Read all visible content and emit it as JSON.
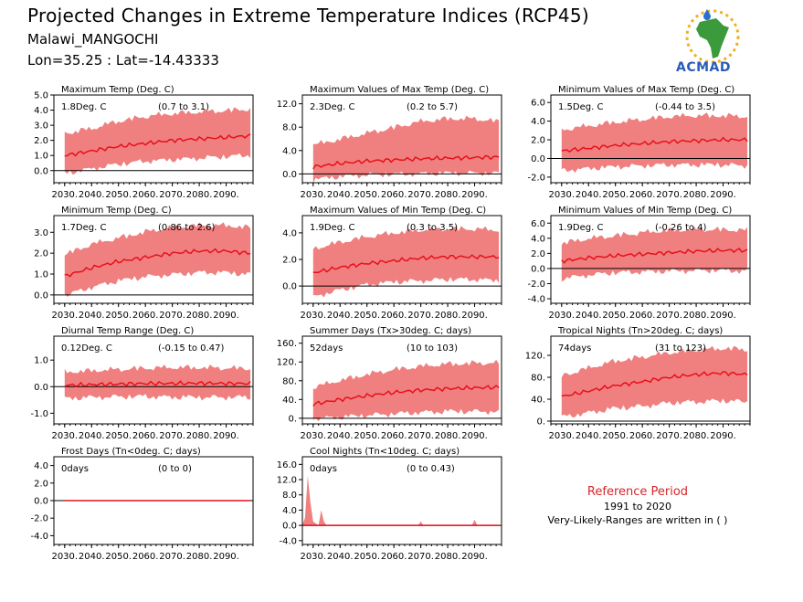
{
  "header": {
    "title": "Projected Changes in Extreme Temperature Indices (RCP45)",
    "location": "Malawi_MANGOCHI",
    "coordinates": "Lon=35.25 : Lat=-14.43333"
  },
  "logo": {
    "text": "ACMAD"
  },
  "reference": {
    "title": "Reference Period",
    "years": "1991 to 2020",
    "note": "Very-Likely-Ranges are written in ( )"
  },
  "colors": {
    "band": "#f08080",
    "line": "#e8101a",
    "zero": "#000000",
    "ref_title": "#d4262a"
  },
  "chart_data": [
    {
      "type": "area",
      "title": "Maximum Temp (Deg. C)",
      "change": "1.8Deg. C",
      "range": "(0.7 to 3.1)",
      "ylim": [
        -0.8,
        5.0
      ],
      "yticks": [
        "5.0",
        "4.0",
        "3.0",
        "2.0",
        "1.0",
        "0.0"
      ],
      "ytick_values": [
        5,
        4,
        3,
        2,
        1,
        0
      ],
      "xticks": [
        "2030.",
        "2040.",
        "2050.",
        "2060.",
        "2070.",
        "2080.",
        "2090."
      ],
      "xlim": [
        2026,
        2100
      ],
      "series": [
        {
          "x": [
            2030,
            2040,
            2050,
            2060,
            2070,
            2080,
            2090,
            2099
          ],
          "median": [
            1.0,
            1.3,
            1.6,
            1.8,
            2.0,
            2.1,
            2.2,
            2.3
          ],
          "low": [
            0.0,
            0.3,
            0.6,
            0.8,
            0.9,
            1.0,
            1.1,
            1.2
          ],
          "high": [
            2.3,
            2.6,
            3.1,
            3.4,
            3.6,
            3.7,
            3.8,
            3.9
          ]
        }
      ]
    },
    {
      "type": "area",
      "title": "Maximum Values of Max Temp (Deg. C)",
      "change": "2.3Deg. C",
      "range": "(0.2 to 5.7)",
      "ylim": [
        -1.5,
        13.5
      ],
      "yticks": [
        "12.0",
        "8.0",
        "4.0",
        "0.0"
      ],
      "ytick_values": [
        12,
        8,
        4,
        0
      ],
      "xticks": [
        "2030.",
        "2040.",
        "2050.",
        "2060.",
        "2070.",
        "2080.",
        "2090."
      ],
      "xlim": [
        2026,
        2100
      ],
      "series": [
        {
          "x": [
            2030,
            2040,
            2050,
            2060,
            2070,
            2080,
            2090,
            2099
          ],
          "median": [
            1.2,
            1.8,
            2.2,
            2.4,
            2.6,
            2.7,
            2.8,
            2.9
          ],
          "low": [
            -0.5,
            0.0,
            0.3,
            0.4,
            0.5,
            0.6,
            0.6,
            0.6
          ],
          "high": [
            4.5,
            5.5,
            6.5,
            7.5,
            8.5,
            9.0,
            9.0,
            8.5
          ]
        }
      ]
    },
    {
      "type": "area",
      "title": "Minimum Values of Max Temp (Deg. C)",
      "change": "1.5Deg. C",
      "range": "(-0.44 to 3.5)",
      "ylim": [
        -2.6,
        6.8
      ],
      "yticks": [
        "6.0",
        "4.0",
        "2.0",
        "0.0",
        "-2.0"
      ],
      "ytick_values": [
        6,
        4,
        2,
        0,
        -2
      ],
      "xticks": [
        "2030.",
        "2040.",
        "2050.",
        "2060.",
        "2070.",
        "2080.",
        "2090."
      ],
      "xlim": [
        2026,
        2100
      ],
      "series": [
        {
          "x": [
            2030,
            2040,
            2050,
            2060,
            2070,
            2080,
            2090,
            2099
          ],
          "median": [
            0.8,
            1.1,
            1.4,
            1.6,
            1.8,
            1.9,
            2.0,
            2.0
          ],
          "low": [
            -1.0,
            -0.8,
            -0.6,
            -0.5,
            -0.4,
            -0.4,
            -0.4,
            -0.5
          ],
          "high": [
            2.8,
            3.2,
            3.6,
            3.9,
            4.2,
            4.3,
            4.3,
            4.2
          ]
        }
      ]
    },
    {
      "type": "area",
      "title": "Minimum Temp (Deg. C)",
      "change": "1.7Deg. C",
      "range": "(0.86 to 2.6)",
      "ylim": [
        -0.4,
        3.8
      ],
      "yticks": [
        "3.0",
        "2.0",
        "1.0",
        "0.0"
      ],
      "ytick_values": [
        3,
        2,
        1,
        0
      ],
      "xticks": [
        "2030.",
        "2040.",
        "2050.",
        "2060.",
        "2070.",
        "2080.",
        "2090."
      ],
      "xlim": [
        2026,
        2100
      ],
      "series": [
        {
          "x": [
            2030,
            2040,
            2050,
            2060,
            2070,
            2080,
            2090,
            2099
          ],
          "median": [
            0.9,
            1.3,
            1.6,
            1.8,
            2.0,
            2.1,
            2.1,
            2.0
          ],
          "low": [
            0.1,
            0.5,
            0.8,
            1.0,
            1.1,
            1.2,
            1.2,
            1.1
          ],
          "high": [
            1.8,
            2.3,
            2.6,
            2.9,
            3.1,
            3.2,
            3.2,
            3.1
          ]
        }
      ]
    },
    {
      "type": "area",
      "title": "Maximum Values of Min Temp (Deg. C)",
      "change": "1.9Deg. C",
      "range": "(0.3 to 3.5)",
      "ylim": [
        -1.3,
        5.3
      ],
      "yticks": [
        "4.0",
        "2.0",
        "0.0"
      ],
      "ytick_values": [
        4,
        2,
        0
      ],
      "xticks": [
        "2030.",
        "2040.",
        "2050.",
        "2060.",
        "2070.",
        "2080.",
        "2090."
      ],
      "xlim": [
        2026,
        2100
      ],
      "series": [
        {
          "x": [
            2030,
            2040,
            2050,
            2060,
            2070,
            2080,
            2090,
            2099
          ],
          "median": [
            1.0,
            1.4,
            1.7,
            1.9,
            2.1,
            2.2,
            2.2,
            2.2
          ],
          "low": [
            -0.6,
            -0.1,
            0.3,
            0.5,
            0.6,
            0.7,
            0.7,
            0.6
          ],
          "high": [
            2.6,
            3.1,
            3.5,
            3.8,
            4.0,
            4.1,
            4.1,
            4.0
          ]
        }
      ]
    },
    {
      "type": "area",
      "title": "Minimum Values of Min Temp (Deg. C)",
      "change": "1.9Deg. C",
      "range": "(-0.26 to 4)",
      "ylim": [
        -4.6,
        7.0
      ],
      "yticks": [
        "6.0",
        "4.0",
        "2.0",
        "0.0",
        "-2.0",
        "-4.0"
      ],
      "ytick_values": [
        6,
        4,
        2,
        0,
        -2,
        -4
      ],
      "xticks": [
        "2030.",
        "2040.",
        "2050.",
        "2060.",
        "2070.",
        "2080.",
        "2090."
      ],
      "xlim": [
        2026,
        2100
      ],
      "series": [
        {
          "x": [
            2030,
            2040,
            2050,
            2060,
            2070,
            2080,
            2090,
            2099
          ],
          "median": [
            1.0,
            1.4,
            1.7,
            1.9,
            2.1,
            2.3,
            2.4,
            2.4
          ],
          "low": [
            -1.0,
            -0.5,
            -0.2,
            -0.1,
            0.0,
            0.1,
            0.1,
            0.0
          ],
          "high": [
            3.0,
            3.6,
            4.0,
            4.4,
            4.7,
            4.8,
            4.8,
            4.7
          ]
        }
      ]
    },
    {
      "type": "area",
      "title": "Diurnal Temp Range (Deg. C)",
      "change": "0.12Deg. C",
      "range": "(-0.15 to 0.47)",
      "ylim": [
        -1.4,
        1.9
      ],
      "yticks": [
        "1.0",
        "0.0",
        "-1.0"
      ],
      "ytick_values": [
        1,
        0,
        -1
      ],
      "xticks": [
        "2030.",
        "2040.",
        "2050.",
        "2060.",
        "2070.",
        "2080.",
        "2090."
      ],
      "xlim": [
        2026,
        2100
      ],
      "series": [
        {
          "x": [
            2030,
            2040,
            2050,
            2060,
            2070,
            2080,
            2090,
            2099
          ],
          "median": [
            0.05,
            0.08,
            0.1,
            0.12,
            0.12,
            0.13,
            0.12,
            0.12
          ],
          "low": [
            -0.35,
            -0.3,
            -0.28,
            -0.27,
            -0.3,
            -0.3,
            -0.3,
            -0.3
          ],
          "high": [
            0.45,
            0.5,
            0.55,
            0.6,
            0.62,
            0.62,
            0.6,
            0.58
          ]
        }
      ]
    },
    {
      "type": "area",
      "title": "Summer Days (Tx>30deg. C; days)",
      "change": "52days",
      "range": "(10 to 103)",
      "ylim": [
        -12,
        175
      ],
      "yticks": [
        "160.",
        "120.",
        "80.",
        "40.",
        "0."
      ],
      "ytick_values": [
        160,
        120,
        80,
        40,
        0
      ],
      "xticks": [
        "2030.",
        "2040.",
        "2050.",
        "2060.",
        "2070.",
        "2080.",
        "2090."
      ],
      "xlim": [
        2026,
        2100
      ],
      "series": [
        {
          "x": [
            2030,
            2040,
            2050,
            2060,
            2070,
            2080,
            2090,
            2099
          ],
          "median": [
            30,
            40,
            48,
            55,
            60,
            63,
            65,
            66
          ],
          "low": [
            5,
            8,
            12,
            15,
            18,
            20,
            20,
            20
          ],
          "high": [
            60,
            75,
            88,
            98,
            105,
            110,
            112,
            112
          ]
        }
      ]
    },
    {
      "type": "area",
      "title": "Tropical Nights (Tn>20deg. C; days)",
      "change": "74days",
      "range": "(31 to 123)",
      "ylim": [
        -5,
        155
      ],
      "yticks": [
        "120.",
        "80.",
        "40.",
        "0."
      ],
      "ytick_values": [
        120,
        80,
        40,
        0
      ],
      "xticks": [
        "2030.",
        "2040.",
        "2050.",
        "2060.",
        "2070.",
        "2080.",
        "2090."
      ],
      "xlim": [
        2026,
        2100
      ],
      "series": [
        {
          "x": [
            2030,
            2040,
            2050,
            2060,
            2070,
            2080,
            2090,
            2099
          ],
          "median": [
            45,
            55,
            65,
            72,
            80,
            85,
            88,
            85
          ],
          "low": [
            12,
            20,
            28,
            32,
            38,
            40,
            42,
            40
          ],
          "high": [
            78,
            92,
            105,
            112,
            120,
            125,
            128,
            126
          ]
        }
      ]
    },
    {
      "type": "area",
      "title": "Frost Days (Tn<0deg. C; days)",
      "change": "0days",
      "range": "(0 to 0)",
      "ylim": [
        -5,
        5
      ],
      "yticks": [
        "4.0",
        "2.0",
        "0.0",
        "-2.0",
        "-4.0"
      ],
      "ytick_values": [
        4,
        2,
        0,
        -2,
        -4
      ],
      "xticks": [
        "2030.",
        "2040.",
        "2050.",
        "2060.",
        "2070.",
        "2080.",
        "2090."
      ],
      "xlim": [
        2026,
        2100
      ],
      "series": [
        {
          "x": [
            2030,
            2099
          ],
          "median": [
            0,
            0
          ],
          "low": [
            0,
            0
          ],
          "high": [
            0,
            0
          ]
        }
      ]
    },
    {
      "type": "area",
      "title": "Cool Nights (Tn<10deg. C; days)",
      "change": "0days",
      "range": "(0 to 0.43)",
      "ylim": [
        -5,
        18
      ],
      "yticks": [
        "16.0",
        "12.0",
        "8.0",
        "4.0",
        "0.0",
        "-4.0"
      ],
      "ytick_values": [
        16,
        12,
        8,
        4,
        0,
        -4
      ],
      "xticks": [
        "2030.",
        "2040.",
        "2050.",
        "2060.",
        "2070.",
        "2080.",
        "2090."
      ],
      "xlim": [
        2026,
        2100
      ],
      "series": [
        {
          "x": [
            2026,
            2027,
            2028,
            2029,
            2030,
            2032,
            2033,
            2034,
            2035,
            2040,
            2050,
            2060,
            2069,
            2070,
            2071,
            2080,
            2089,
            2090,
            2091,
            2099
          ],
          "median": [
            0,
            0,
            0,
            0,
            0,
            0,
            0,
            0,
            0,
            0,
            0,
            0,
            0,
            0,
            0,
            0,
            0,
            0,
            0,
            0
          ],
          "low": [
            0,
            0,
            0,
            0,
            0,
            0,
            0,
            0,
            0,
            0,
            0,
            0,
            0,
            0,
            0,
            0,
            0,
            0,
            0,
            0
          ],
          "high": [
            0,
            2,
            13,
            6,
            1,
            0,
            4,
            1,
            0,
            0,
            0,
            0,
            0,
            1,
            0,
            0,
            0,
            1.5,
            0,
            0
          ]
        }
      ]
    }
  ]
}
